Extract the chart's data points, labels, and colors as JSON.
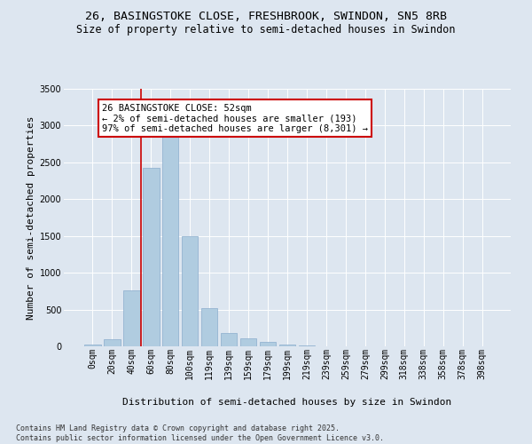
{
  "title_line1": "26, BASINGSTOKE CLOSE, FRESHBROOK, SWINDON, SN5 8RB",
  "title_line2": "Size of property relative to semi-detached houses in Swindon",
  "xlabel": "Distribution of semi-detached houses by size in Swindon",
  "ylabel": "Number of semi-detached properties",
  "categories": [
    "0sqm",
    "20sqm",
    "40sqm",
    "60sqm",
    "80sqm",
    "100sqm",
    "119sqm",
    "139sqm",
    "159sqm",
    "179sqm",
    "199sqm",
    "219sqm",
    "239sqm",
    "259sqm",
    "279sqm",
    "299sqm",
    "318sqm",
    "338sqm",
    "358sqm",
    "378sqm",
    "398sqm"
  ],
  "values": [
    25,
    100,
    760,
    2430,
    3280,
    1500,
    520,
    185,
    110,
    65,
    30,
    12,
    6,
    3,
    2,
    1,
    1,
    0,
    0,
    0,
    0
  ],
  "bar_color": "#b0cce0",
  "bar_edge_color": "#8aaccc",
  "vline_color": "#cc0000",
  "vline_x": 2.5,
  "annotation_title": "26 BASINGSTOKE CLOSE: 52sqm",
  "annotation_line2": "← 2% of semi-detached houses are smaller (193)",
  "annotation_line3": "97% of semi-detached houses are larger (8,301) →",
  "annotation_box_facecolor": "#ffffff",
  "annotation_box_edgecolor": "#cc0000",
  "ylim": [
    0,
    3500
  ],
  "yticks": [
    0,
    500,
    1000,
    1500,
    2000,
    2500,
    3000,
    3500
  ],
  "bg_color": "#dde6f0",
  "plot_bg_color": "#dde6f0",
  "grid_color": "#ffffff",
  "title_fontsize": 9.5,
  "subtitle_fontsize": 8.5,
  "axis_label_fontsize": 8,
  "tick_fontsize": 7,
  "annotation_fontsize": 7.5,
  "footer_fontsize": 6
}
